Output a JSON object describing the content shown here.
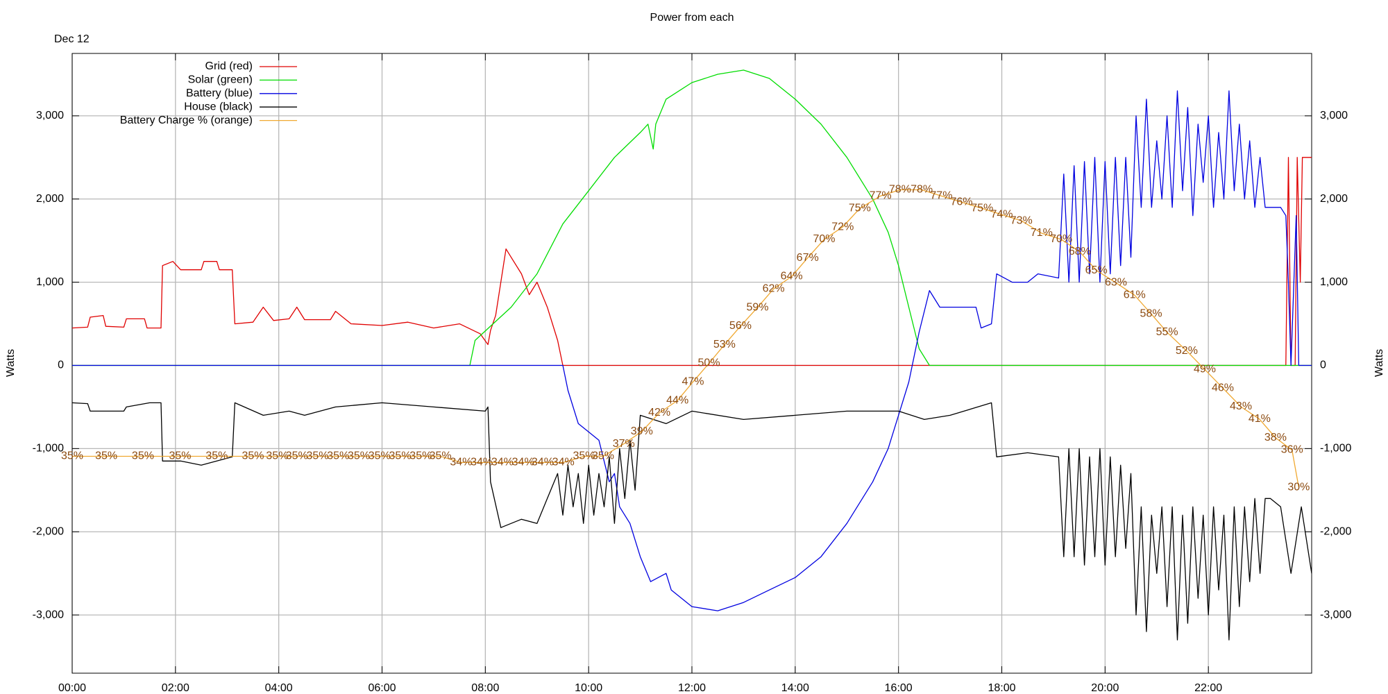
{
  "chart_data": {
    "type": "line",
    "title": "Power from each",
    "annotation": "Dec 12",
    "ylabel": "Watts",
    "y2label": "Watts",
    "legend": "upper left",
    "grid": true,
    "xlim": [
      0,
      24
    ],
    "xticks": [
      {
        "value": 0,
        "label": "00:00"
      },
      {
        "value": 2,
        "label": "02:00"
      },
      {
        "value": 4,
        "label": "04:00"
      },
      {
        "value": 6,
        "label": "06:00"
      },
      {
        "value": 8,
        "label": "08:00"
      },
      {
        "value": 10,
        "label": "10:00"
      },
      {
        "value": 12,
        "label": "12:00"
      },
      {
        "value": 14,
        "label": "14:00"
      },
      {
        "value": 16,
        "label": "16:00"
      },
      {
        "value": 18,
        "label": "18:00"
      },
      {
        "value": 20,
        "label": "20:00"
      },
      {
        "value": 22,
        "label": "22:00"
      }
    ],
    "ylim": [
      -3700,
      3750
    ],
    "yticks": [
      {
        "value": -3000,
        "label": "-3,000"
      },
      {
        "value": -2000,
        "label": "-2,000"
      },
      {
        "value": -1000,
        "label": "-1,000"
      },
      0,
      {
        "value": 1000,
        "label": "1,000"
      },
      {
        "value": 2000,
        "label": "2,000"
      },
      {
        "value": 3000,
        "label": "3,000"
      }
    ],
    "y2lim": [
      -3700,
      3750
    ],
    "y2ticks": [
      {
        "value": -3000,
        "label": "-3,000"
      },
      {
        "value": -2000,
        "label": "-2,000"
      },
      {
        "value": -1000,
        "label": "-1,000"
      },
      0,
      {
        "value": 1000,
        "label": "1,000"
      },
      {
        "value": 2000,
        "label": "2,000"
      },
      {
        "value": 3000,
        "label": "3,000"
      }
    ],
    "y3lim": [
      0,
      100
    ],
    "series": [
      {
        "name": "Grid (red)",
        "color": "#e00000",
        "x": [
          0,
          0.3,
          0.35,
          0.6,
          0.65,
          1.0,
          1.05,
          1.4,
          1.45,
          1.72,
          1.75,
          1.95,
          2.1,
          2.5,
          2.55,
          2.8,
          2.85,
          3.1,
          3.15,
          3.5,
          3.7,
          3.9,
          4.2,
          4.35,
          4.5,
          5.0,
          5.1,
          5.4,
          6.0,
          6.5,
          7.0,
          7.5,
          7.9,
          8.05,
          8.1,
          8.2,
          8.4,
          8.5,
          8.7,
          8.85,
          9.0,
          9.2,
          9.4,
          9.5,
          23.5,
          23.55,
          23.6,
          23.68,
          23.72,
          23.78,
          23.82,
          24
        ],
        "values": [
          450,
          460,
          580,
          600,
          470,
          460,
          560,
          560,
          450,
          450,
          1200,
          1250,
          1150,
          1150,
          1250,
          1250,
          1150,
          1150,
          500,
          520,
          700,
          540,
          560,
          700,
          550,
          550,
          650,
          500,
          480,
          520,
          450,
          500,
          380,
          250,
          420,
          600,
          1400,
          1300,
          1100,
          850,
          1000,
          700,
          300,
          0,
          0,
          2500,
          0,
          0,
          2500,
          1000,
          2500,
          2500
        ]
      },
      {
        "name": "Solar (green)",
        "color": "#00dd00",
        "x": [
          0,
          7.7,
          7.8,
          8.5,
          9.0,
          9.5,
          10,
          10.5,
          11,
          11.15,
          11.25,
          11.3,
          11.5,
          12,
          12.5,
          13,
          13.5,
          14,
          14.5,
          15,
          15.5,
          15.8,
          16,
          16.2,
          16.4,
          16.6,
          24
        ],
        "values": [
          0,
          0,
          300,
          700,
          1100,
          1700,
          2100,
          2500,
          2800,
          2900,
          2600,
          2900,
          3200,
          3400,
          3500,
          3550,
          3450,
          3200,
          2900,
          2500,
          2000,
          1600,
          1200,
          700,
          200,
          0,
          0
        ]
      },
      {
        "name": "Battery (blue)",
        "color": "#0000e0",
        "x": [
          0,
          9.5,
          9.6,
          9.8,
          10.0,
          10.2,
          10.4,
          10.5,
          10.6,
          10.8,
          11,
          11.2,
          11.5,
          11.6,
          12,
          12.5,
          13,
          13.5,
          14,
          14.5,
          15,
          15.5,
          15.8,
          16,
          16.2,
          16.4,
          16.6,
          16.8,
          17,
          17.5,
          17.6,
          17.8,
          17.9,
          18.2,
          18.5,
          18.7,
          19.1,
          19.2,
          19.3,
          19.4,
          19.5,
          19.6,
          19.7,
          19.8,
          19.9,
          20.0,
          20.1,
          20.2,
          20.3,
          20.4,
          20.5,
          20.6,
          20.7,
          20.8,
          20.9,
          21.0,
          21.1,
          21.2,
          21.3,
          21.4,
          21.5,
          21.6,
          21.7,
          21.8,
          21.9,
          22.0,
          22.1,
          22.2,
          22.3,
          22.4,
          22.5,
          22.6,
          22.7,
          22.8,
          22.9,
          23.0,
          23.1,
          23.2,
          23.4,
          23.5,
          23.55,
          23.6,
          23.7,
          23.75,
          23.8,
          24
        ],
        "values": [
          0,
          0,
          -300,
          -700,
          -800,
          -900,
          -1400,
          -1300,
          -1700,
          -1900,
          -2300,
          -2600,
          -2500,
          -2700,
          -2900,
          -2950,
          -2850,
          -2700,
          -2550,
          -2300,
          -1900,
          -1400,
          -1000,
          -600,
          -200,
          400,
          900,
          700,
          700,
          700,
          450,
          500,
          1100,
          1000,
          1000,
          1100,
          1050,
          2300,
          1000,
          2400,
          1000,
          2450,
          1100,
          2500,
          1000,
          2450,
          1100,
          2500,
          1200,
          2500,
          1300,
          3000,
          1900,
          3200,
          1900,
          2700,
          2000,
          3000,
          1900,
          3300,
          2100,
          3100,
          1800,
          2900,
          2200,
          3000,
          1900,
          2800,
          2000,
          3300,
          2100,
          2900,
          2000,
          2700,
          1900,
          2500,
          1900,
          1900,
          1900,
          1800,
          1000,
          0,
          1800,
          0,
          0,
          0
        ]
      },
      {
        "name": "House (black)",
        "color": "#000000",
        "x": [
          0,
          0.3,
          0.35,
          1.0,
          1.05,
          1.5,
          1.72,
          1.75,
          2.1,
          2.5,
          3.1,
          3.15,
          3.7,
          4.2,
          4.5,
          5.1,
          6,
          7,
          8,
          8.05,
          8.1,
          8.3,
          8.7,
          9.0,
          9.2,
          9.4,
          9.5,
          9.6,
          9.7,
          9.8,
          9.9,
          10.0,
          10.1,
          10.2,
          10.3,
          10.4,
          10.5,
          10.6,
          10.7,
          10.8,
          10.9,
          11,
          11.5,
          12,
          13,
          14,
          15,
          16,
          16.5,
          17,
          17.8,
          17.9,
          18.5,
          19.1,
          19.2,
          19.3,
          19.4,
          19.5,
          19.6,
          19.7,
          19.8,
          19.9,
          20.0,
          20.1,
          20.2,
          20.3,
          20.4,
          20.5,
          20.6,
          20.7,
          20.8,
          20.9,
          21.0,
          21.1,
          21.2,
          21.3,
          21.4,
          21.5,
          21.6,
          21.7,
          21.8,
          21.9,
          22.0,
          22.1,
          22.2,
          22.3,
          22.4,
          22.5,
          22.6,
          22.7,
          22.8,
          22.9,
          23.0,
          23.1,
          23.2,
          23.4,
          23.6,
          23.8,
          24
        ],
        "values": [
          -450,
          -460,
          -550,
          -550,
          -500,
          -450,
          -450,
          -1150,
          -1150,
          -1200,
          -1100,
          -450,
          -600,
          -550,
          -600,
          -500,
          -450,
          -500,
          -550,
          -500,
          -1400,
          -1950,
          -1850,
          -1900,
          -1600,
          -1300,
          -1800,
          -1200,
          -1700,
          -1300,
          -1900,
          -1200,
          -1800,
          -1300,
          -1700,
          -1100,
          -1900,
          -1000,
          -1600,
          -900,
          -1500,
          -600,
          -700,
          -550,
          -650,
          -600,
          -550,
          -550,
          -650,
          -600,
          -450,
          -1100,
          -1050,
          -1100,
          -2300,
          -1000,
          -2300,
          -1000,
          -2400,
          -1100,
          -2300,
          -1000,
          -2400,
          -1100,
          -2300,
          -1200,
          -2200,
          -1300,
          -3000,
          -1700,
          -3200,
          -1800,
          -2500,
          -1700,
          -2900,
          -1700,
          -3300,
          -1800,
          -3100,
          -1700,
          -2800,
          -1800,
          -3000,
          -1700,
          -2700,
          -1800,
          -3300,
          -1700,
          -2900,
          -1700,
          -2600,
          -1600,
          -2500,
          -1600,
          -1600,
          -1700,
          -2500,
          -1700,
          -2500
        ]
      },
      {
        "name": "Battery Charge % (orange)",
        "color": "#f0a830",
        "axis": "y3",
        "label_color": "#8b4a10",
        "x": [
          0,
          0.66,
          1.37,
          2.09,
          2.8,
          3.5,
          3.97,
          4.35,
          4.75,
          5.15,
          5.55,
          5.95,
          6.35,
          6.75,
          7.13,
          7.53,
          7.93,
          8.33,
          8.73,
          9.11,
          9.51,
          9.91,
          10.28,
          10.68,
          11.03,
          11.37,
          11.72,
          12.02,
          12.33,
          12.63,
          12.94,
          13.27,
          13.58,
          13.93,
          14.24,
          14.56,
          14.92,
          15.25,
          15.65,
          16.03,
          16.45,
          16.83,
          17.22,
          17.62,
          18.0,
          18.38,
          18.77,
          19.15,
          19.51,
          19.83,
          20.21,
          20.57,
          20.89,
          21.2,
          21.58,
          21.93,
          22.28,
          22.63,
          22.99,
          23.3,
          23.62,
          23.75
        ],
        "values": [
          35,
          35,
          35,
          35,
          35,
          35,
          35,
          35,
          35,
          35,
          35,
          35,
          35,
          35,
          35,
          34,
          34,
          34,
          34,
          34,
          34,
          35,
          35,
          37,
          39,
          42,
          44,
          47,
          50,
          53,
          56,
          59,
          62,
          64,
          67,
          70,
          72,
          75,
          77,
          78,
          78,
          77,
          76,
          75,
          74,
          73,
          71,
          70,
          68,
          65,
          63,
          61,
          58,
          55,
          52,
          49,
          46,
          43,
          41,
          38,
          36,
          30
        ],
        "value_labels": [
          "35%",
          "35%",
          "35%",
          "35%",
          "35%",
          "35%",
          "35%",
          "35%",
          "35%",
          "35%",
          "35%",
          "35%",
          "35%",
          "35%",
          "35%",
          "34%",
          "34%",
          "34%",
          "34%",
          "34%",
          "34%",
          "35%",
          "35%",
          "37%",
          "39%",
          "42%",
          "44%",
          "47%",
          "50%",
          "53%",
          "56%",
          "59%",
          "62%",
          "64%",
          "67%",
          "70%",
          "72%",
          "75%",
          "77%",
          "78%",
          "78%",
          "77%",
          "76%",
          "75%",
          "74%",
          "73%",
          "71%",
          "70%",
          "68%",
          "65%",
          "63%",
          "61%",
          "58%",
          "55%",
          "52%",
          "49%",
          "46%",
          "43%",
          "41%",
          "38%",
          "36%",
          "30%"
        ]
      }
    ]
  }
}
